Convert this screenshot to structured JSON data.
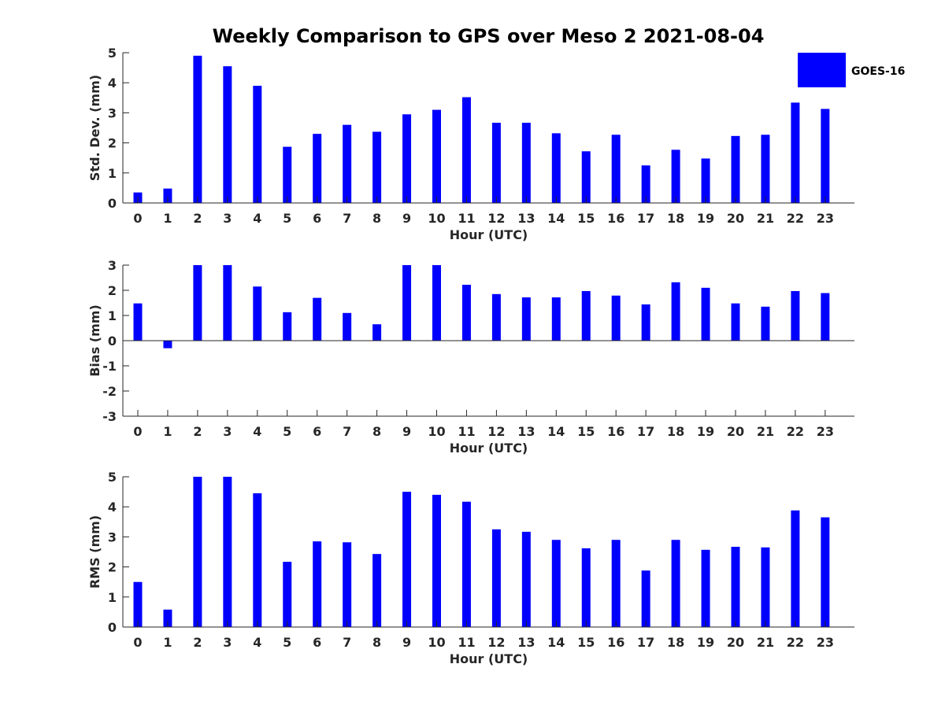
{
  "chart_data": {
    "title": "Weekly Comparison to GPS over Meso 2 2021-08-04",
    "legend": {
      "entries": [
        "GOES-16"
      ],
      "placement": "top-right (outside plot area)"
    },
    "bar_color": "#0000ff",
    "panels": [
      {
        "type": "bar",
        "ylabel": "Std. Dev. (mm)",
        "xlabel": "Hour (UTC)",
        "ylim": [
          0,
          5
        ],
        "yticks": [
          0,
          1,
          2,
          3,
          4,
          5
        ],
        "categories": [
          "0",
          "1",
          "2",
          "3",
          "4",
          "5",
          "6",
          "7",
          "8",
          "9",
          "10",
          "11",
          "12",
          "13",
          "14",
          "15",
          "16",
          "17",
          "18",
          "19",
          "20",
          "21",
          "22",
          "23"
        ],
        "series": [
          {
            "name": "GOES-16",
            "values": [
              0.35,
              0.48,
              4.9,
              4.55,
              3.9,
              1.87,
              2.3,
              2.6,
              2.37,
              2.95,
              3.1,
              3.52,
              2.67,
              2.67,
              2.32,
              1.72,
              2.27,
              1.25,
              1.77,
              1.48,
              2.23,
              2.27,
              3.34,
              3.13
            ]
          }
        ],
        "grid": false
      },
      {
        "type": "bar",
        "ylabel": "Bias (mm)",
        "xlabel": "Hour (UTC)",
        "ylim": [
          -3,
          3
        ],
        "yticks": [
          -3,
          -2,
          -1,
          0,
          1,
          2,
          3
        ],
        "categories": [
          "0",
          "1",
          "2",
          "3",
          "4",
          "5",
          "6",
          "7",
          "8",
          "9",
          "10",
          "11",
          "12",
          "13",
          "14",
          "15",
          "16",
          "17",
          "18",
          "19",
          "20",
          "21",
          "22",
          "23"
        ],
        "series": [
          {
            "name": "GOES-16",
            "values": [
              1.48,
              -0.3,
              3.0,
              3.0,
              2.15,
              1.13,
              1.7,
              1.1,
              0.65,
              3.0,
              3.0,
              2.22,
              1.85,
              1.72,
              1.72,
              1.97,
              1.79,
              1.44,
              2.32,
              2.1,
              1.48,
              1.35,
              1.97,
              1.89
            ]
          }
        ],
        "zero_line": true,
        "grid": false
      },
      {
        "type": "bar",
        "ylabel": "RMS (mm)",
        "xlabel": "Hour (UTC)",
        "ylim": [
          0,
          5
        ],
        "yticks": [
          0,
          1,
          2,
          3,
          4,
          5
        ],
        "categories": [
          "0",
          "1",
          "2",
          "3",
          "4",
          "5",
          "6",
          "7",
          "8",
          "9",
          "10",
          "11",
          "12",
          "13",
          "14",
          "15",
          "16",
          "17",
          "18",
          "19",
          "20",
          "21",
          "22",
          "23"
        ],
        "series": [
          {
            "name": "GOES-16",
            "values": [
              1.5,
              0.58,
              5.0,
              5.0,
              4.45,
              2.17,
              2.85,
              2.82,
              2.43,
              4.5,
              4.4,
              4.17,
              3.25,
              3.17,
              2.9,
              2.62,
              2.9,
              1.88,
              2.9,
              2.57,
              2.67,
              2.65,
              3.88,
              3.65
            ]
          }
        ],
        "grid": false
      }
    ]
  }
}
